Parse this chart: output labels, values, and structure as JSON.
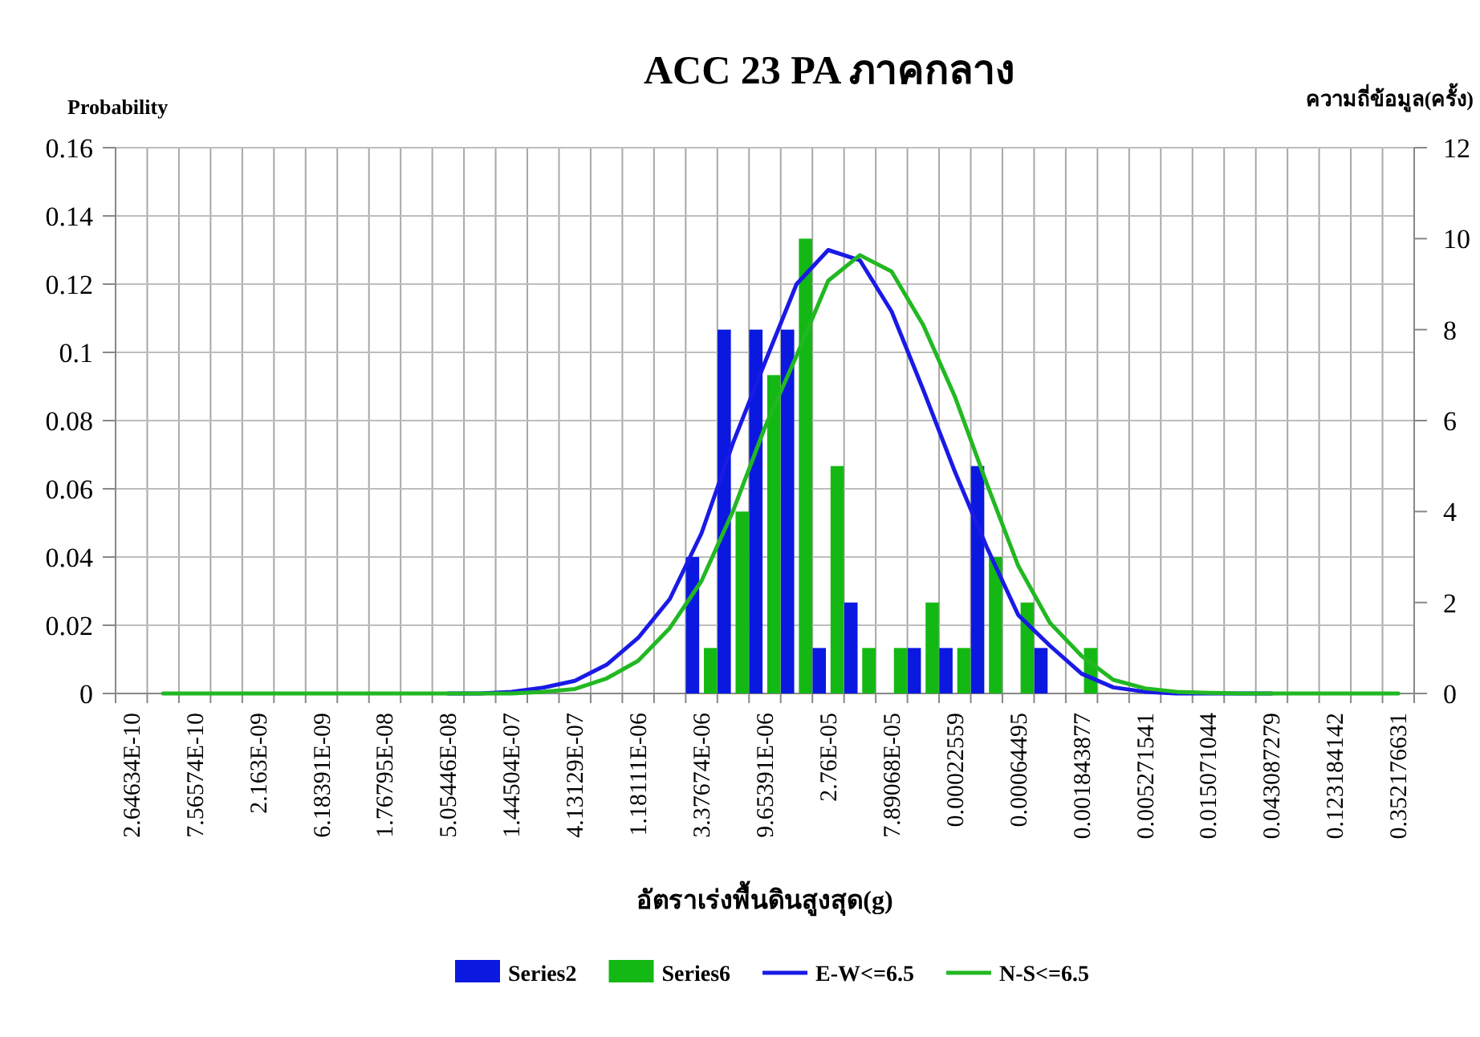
{
  "chart_data": {
    "type": "bar",
    "title": "ACC 23 PA ภาคกลาง",
    "xlabel": "อัตราเร่งพื้นดินสูงสุด(g)",
    "ylabel": "Probability",
    "y2label": "ความถี่ข้อมูล(ครั้ง)",
    "categories": [
      "2.64634E-10",
      null,
      "7.56574E-10",
      null,
      "2.163E-09",
      null,
      "6.18391E-09",
      null,
      "1.76795E-08",
      null,
      "5.05446E-08",
      null,
      "1.44504E-07",
      null,
      "4.13129E-07",
      null,
      "1.18111E-06",
      null,
      "3.37674E-06",
      null,
      "9.65391E-06",
      null,
      "2.76E-05",
      null,
      "7.89068E-05",
      null,
      "0.00022559",
      null,
      "0.00064495",
      null,
      "0.001843877",
      null,
      "0.005271541",
      null,
      "0.015071044",
      null,
      "0.043087279",
      null,
      "0.123184142",
      null,
      "0.352176631"
    ],
    "series": [
      {
        "name": "Series2",
        "axis": "y2",
        "color": "#0a18e0",
        "values": [
          null,
          null,
          null,
          null,
          null,
          null,
          null,
          null,
          null,
          null,
          null,
          null,
          null,
          null,
          null,
          null,
          null,
          null,
          3,
          8,
          8,
          8,
          1,
          2,
          null,
          1,
          1,
          5,
          null,
          1,
          null,
          null,
          null,
          null,
          null,
          null,
          null,
          null,
          null,
          null,
          null
        ]
      },
      {
        "name": "Series6",
        "axis": "y2",
        "color": "#14b814",
        "values": [
          null,
          null,
          null,
          null,
          null,
          null,
          null,
          null,
          null,
          null,
          null,
          null,
          null,
          null,
          null,
          null,
          null,
          null,
          1,
          4,
          7,
          10,
          5,
          1,
          1,
          2,
          1,
          3,
          2,
          null,
          1,
          null,
          null,
          null,
          null,
          null,
          null,
          null,
          null,
          null,
          null
        ]
      },
      {
        "name": "E-W<=6.5",
        "type": "line",
        "color": "#1a1ae6",
        "values": [
          null,
          null,
          null,
          null,
          null,
          null,
          null,
          null,
          null,
          null,
          0,
          0,
          0.0005,
          0.0017,
          0.0037,
          0.0084,
          0.0163,
          0.0277,
          0.047,
          0.0736,
          0.097,
          0.12,
          0.13,
          0.127,
          0.112,
          0.089,
          0.065,
          0.043,
          0.023,
          0.014,
          0.0058,
          0.0018,
          0.0005,
          0,
          0,
          0,
          0,
          null,
          null,
          null,
          null
        ]
      },
      {
        "name": "N-S<=6.5",
        "type": "line",
        "color": "#22b822",
        "values": [
          null,
          0,
          0,
          0,
          0,
          0,
          0,
          0,
          0,
          0,
          0,
          0,
          0,
          0.0005,
          0.0013,
          0.0044,
          0.0096,
          0.0192,
          0.033,
          0.0536,
          0.078,
          0.099,
          0.121,
          0.1285,
          0.1237,
          0.108,
          0.087,
          0.0617,
          0.0374,
          0.0207,
          0.011,
          0.004,
          0.0015,
          0.0005,
          0.0002,
          0,
          0,
          0,
          0,
          0,
          0
        ]
      }
    ],
    "ylim": [
      0,
      0.16
    ],
    "yticks": [
      0,
      0.02,
      0.04,
      0.06,
      0.08,
      0.1,
      0.12,
      0.14,
      0.16
    ],
    "y2lim": [
      0,
      12
    ],
    "y2ticks": [
      0,
      2,
      4,
      6,
      8,
      10,
      12
    ],
    "grid": true,
    "legend": "bottom"
  }
}
